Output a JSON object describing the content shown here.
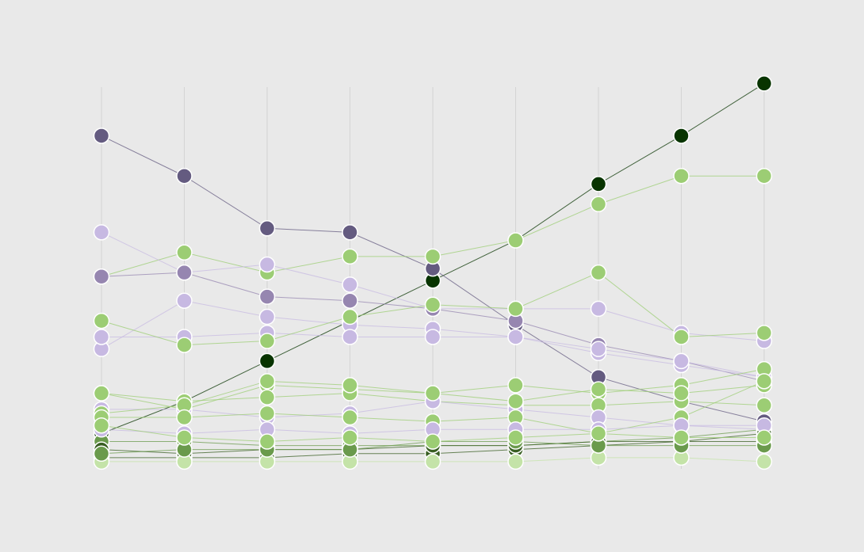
{
  "background_color": "#e9e9e9",
  "chart_data": {
    "type": "line",
    "title": "",
    "xlabel": "",
    "ylabel": "",
    "x": [
      1,
      2,
      3,
      4,
      5,
      6,
      7,
      8,
      9
    ],
    "ylim": [
      0,
      1
    ],
    "grid": "vertical",
    "legend": "none",
    "colors": {
      "dark_green": "#083400",
      "mid_green": "#385e22",
      "green": "#6a9a4c",
      "light_green": "#9ccd74",
      "pale_green": "#c4e3a8",
      "dark_purple": "#645b80",
      "purple": "#9686b0",
      "lavender": "#c7b9e2"
    },
    "series": [
      {
        "color": "#083400",
        "values": [
          0.08,
          0.16,
          0.26,
          0.36,
          0.46,
          0.56,
          0.7,
          0.82,
          0.95
        ]
      },
      {
        "color": "#645b80",
        "values": [
          0.82,
          0.72,
          0.59,
          0.58,
          0.49,
          0.35,
          0.22,
          0.16,
          0.11
        ]
      },
      {
        "color": "#9ccd74",
        "values": [
          0.47,
          0.53,
          0.48,
          0.52,
          0.52,
          0.56,
          0.65,
          0.72,
          0.72
        ]
      },
      {
        "color": "#c7b9e2",
        "values": [
          0.58,
          0.48,
          0.5,
          0.45,
          0.39,
          0.39,
          0.39,
          0.33,
          0.31
        ]
      },
      {
        "color": "#9686b0",
        "values": [
          0.47,
          0.48,
          0.42,
          0.41,
          0.39,
          0.36,
          0.3,
          0.26,
          0.21
        ]
      },
      {
        "color": "#c7b9e2",
        "values": [
          0.29,
          0.41,
          0.37,
          0.35,
          0.34,
          0.32,
          0.28,
          0.25,
          0.22
        ]
      },
      {
        "color": "#c7b9e2",
        "values": [
          0.32,
          0.32,
          0.33,
          0.32,
          0.32,
          0.32,
          0.29,
          0.26,
          0.22
        ]
      },
      {
        "color": "#9ccd74",
        "values": [
          0.36,
          0.3,
          0.31,
          0.37,
          0.4,
          0.39,
          0.48,
          0.32,
          0.33
        ]
      },
      {
        "color": "#9ccd74",
        "values": [
          0.18,
          0.14,
          0.2,
          0.19,
          0.18,
          0.2,
          0.18,
          0.2,
          0.24
        ]
      },
      {
        "color": "#9ccd74",
        "values": [
          0.18,
          0.16,
          0.17,
          0.18,
          0.16,
          0.15,
          0.15,
          0.16,
          0.15
        ]
      },
      {
        "color": "#c7b9e2",
        "values": [
          0.14,
          0.14,
          0.12,
          0.13,
          0.16,
          0.14,
          0.12,
          0.1,
          0.09
        ]
      },
      {
        "color": "#9ccd74",
        "values": [
          0.13,
          0.15,
          0.21,
          0.2,
          0.18,
          0.16,
          0.19,
          0.18,
          0.2
        ]
      },
      {
        "color": "#9ccd74",
        "values": [
          0.12,
          0.12,
          0.13,
          0.12,
          0.11,
          0.12,
          0.08,
          0.12,
          0.21
        ]
      },
      {
        "color": "#6a9a4c",
        "values": [
          0.06,
          0.06,
          0.05,
          0.05,
          0.05,
          0.05,
          0.06,
          0.07,
          0.09
        ]
      },
      {
        "color": "#385e22",
        "values": [
          0.02,
          0.02,
          0.02,
          0.03,
          0.03,
          0.04,
          0.05,
          0.06,
          0.06
        ]
      },
      {
        "color": "#385e22",
        "values": [
          0.04,
          0.03,
          0.04,
          0.04,
          0.05,
          0.05,
          0.06,
          0.06,
          0.08
        ]
      },
      {
        "color": "#c4e3a8",
        "values": [
          0.01,
          0.01,
          0.01,
          0.01,
          0.01,
          0.01,
          0.02,
          0.02,
          0.01
        ]
      },
      {
        "color": "#6a9a4c",
        "values": [
          0.03,
          0.04,
          0.04,
          0.04,
          0.06,
          0.06,
          0.05,
          0.05,
          0.05
        ]
      },
      {
        "color": "#c7b9e2",
        "values": [
          0.09,
          0.08,
          0.09,
          0.08,
          0.09,
          0.09,
          0.09,
          0.1,
          0.1
        ]
      },
      {
        "color": "#9ccd74",
        "values": [
          0.1,
          0.07,
          0.06,
          0.07,
          0.06,
          0.07,
          0.08,
          0.07,
          0.07
        ]
      }
    ]
  }
}
